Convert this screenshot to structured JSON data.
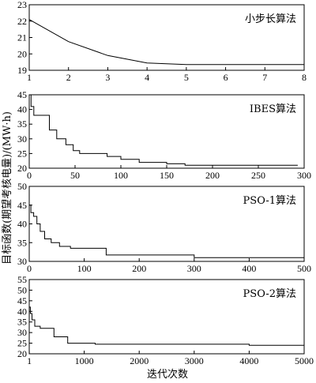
{
  "figure": {
    "ylabel": "目标函数(期望考核电量)/(MW·h)",
    "xlabel": "迭代次数"
  },
  "chart_data": [
    {
      "type": "line",
      "title": "小步长算法",
      "xlim": [
        1,
        8
      ],
      "ylim": [
        19,
        23
      ],
      "xticks": [
        1,
        2,
        3,
        4,
        5,
        6,
        7,
        8
      ],
      "yticks": [
        19,
        20,
        21,
        22,
        23
      ],
      "step": false,
      "series": [
        {
          "x": [
            1,
            2,
            3,
            4,
            5,
            6,
            7,
            8
          ],
          "y": [
            22.1,
            20.75,
            19.9,
            19.45,
            19.35,
            19.35,
            19.35,
            19.35
          ]
        }
      ]
    },
    {
      "type": "line",
      "title": "IBES算法",
      "xlim": [
        0,
        300
      ],
      "ylim": [
        20,
        45
      ],
      "xticks": [
        0,
        50,
        100,
        150,
        200,
        250,
        300
      ],
      "yticks": [
        20,
        25,
        30,
        35,
        40,
        45
      ],
      "step": true,
      "series": [
        {
          "x": [
            0,
            2,
            5,
            10,
            22,
            30,
            40,
            48,
            55,
            70,
            85,
            100,
            120,
            150,
            170,
            195,
            220,
            250,
            293
          ],
          "y": [
            45,
            41,
            38,
            38,
            33,
            30,
            28,
            26,
            25,
            25,
            24,
            23,
            22,
            21.5,
            21,
            21,
            21,
            21,
            21
          ]
        }
      ]
    },
    {
      "type": "line",
      "title": "PSO-1算法",
      "xlim": [
        0,
        500
      ],
      "ylim": [
        30,
        50
      ],
      "xticks": [
        0,
        100,
        200,
        300,
        400,
        500
      ],
      "yticks": [
        30,
        35,
        40,
        45,
        50
      ],
      "step": true,
      "series": [
        {
          "x": [
            0,
            3,
            8,
            14,
            20,
            28,
            40,
            55,
            75,
            100,
            140,
            200,
            300,
            400,
            500
          ],
          "y": [
            45,
            43,
            42,
            40,
            38,
            36,
            35,
            34,
            33.5,
            33.5,
            31.7,
            31.7,
            31,
            31,
            31
          ]
        }
      ]
    },
    {
      "type": "line",
      "title": "PSO-2算法",
      "xlim": [
        0,
        5000
      ],
      "ylim": [
        20,
        55
      ],
      "xticks": [
        1,
        1000,
        2000,
        3000,
        4000,
        5000
      ],
      "yticks": [
        20,
        25,
        30,
        35,
        40,
        45,
        50,
        55
      ],
      "step": true,
      "series": [
        {
          "x": [
            1,
            20,
            50,
            100,
            200,
            450,
            700,
            1200,
            2000,
            3000,
            4000,
            5000
          ],
          "y": [
            42,
            39,
            36,
            33,
            32,
            28,
            25,
            24.5,
            24.5,
            24.5,
            24,
            24
          ]
        }
      ]
    }
  ]
}
